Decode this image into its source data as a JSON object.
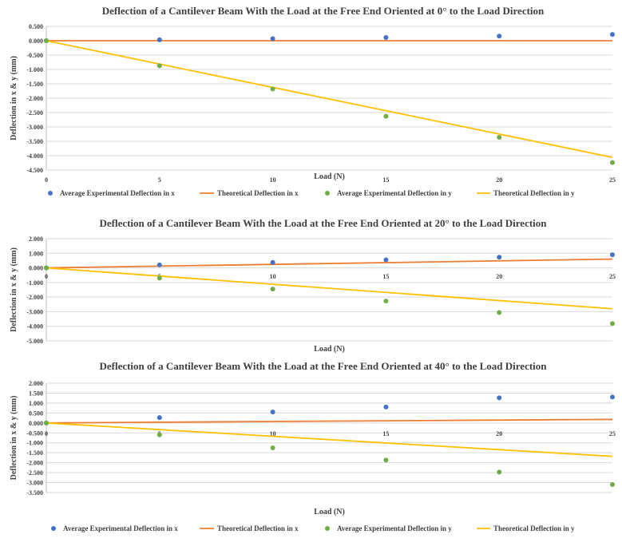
{
  "colors": {
    "exp_x": "#4472C4",
    "theo_x": "#ED7D31",
    "exp_y": "#70AD47",
    "theo_y": "#FFC000",
    "grid": "#D9D9D9",
    "axis": "#404040"
  },
  "chart_data": [
    {
      "type": "scatter",
      "title": "Deflection of a Cantilever Beam With the Load at the Free End Oriented at 0° to the Load Direction",
      "xlabel": "Load (N)",
      "ylabel": "Deflection in x & y (mm)",
      "xlim": [
        0,
        25
      ],
      "ylim": [
        -4.5,
        0.5
      ],
      "x_ticks": [
        0,
        5,
        10,
        15,
        20,
        25
      ],
      "y_ticks": [
        0.5,
        0,
        -0.5,
        -1.0,
        -1.5,
        -2.0,
        -2.5,
        -3.0,
        -3.5,
        -4.0,
        -4.5
      ],
      "y_tick_labels": [
        "0.500",
        "0.000",
        "-0.500",
        "-1.000",
        "-1.500",
        "-2.000",
        "-2.500",
        "-3.000",
        "-3.500",
        "-4.000",
        "-4.500"
      ],
      "grid": true,
      "legend": "bottom",
      "series": [
        {
          "name": "Average Experimental Deflection in x",
          "kind": "points",
          "color": "#4472C4",
          "x": [
            0,
            5,
            10,
            15,
            20,
            25
          ],
          "y": [
            0.0,
            0.03,
            0.07,
            0.11,
            0.16,
            0.22
          ]
        },
        {
          "name": "Theoretical Deflection in x",
          "kind": "line",
          "color": "#ED7D31",
          "x": [
            0,
            25
          ],
          "y": [
            0.0,
            0.0
          ]
        },
        {
          "name": "Average Experimental Deflection in y",
          "kind": "points",
          "color": "#70AD47",
          "x": [
            0,
            5,
            10,
            15,
            20,
            25
          ],
          "y": [
            0.0,
            -0.87,
            -1.68,
            -2.63,
            -3.36,
            -4.24
          ]
        },
        {
          "name": "Theoretical Deflection in y",
          "kind": "line",
          "color": "#FFC000",
          "x": [
            0,
            25
          ],
          "y": [
            0.0,
            -4.06
          ]
        }
      ]
    },
    {
      "type": "scatter",
      "title": "Deflection of a Cantilever Beam With the Load at the Free End Oriented at 20° to the Load Direction",
      "xlabel": "Load (N)",
      "ylabel": "Deflection in x & y (mm)",
      "xlim": [
        0,
        25
      ],
      "ylim": [
        -5.0,
        2.0
      ],
      "x_ticks": [
        0,
        5,
        10,
        15,
        20,
        25
      ],
      "y_ticks": [
        2.0,
        1.0,
        0,
        -1.0,
        -2.0,
        -3.0,
        -4.0,
        -5.0
      ],
      "y_tick_labels": [
        "2.000",
        "1.000",
        "0.000",
        "-1.000",
        "-2.000",
        "-3.000",
        "-4.000",
        "-5.000"
      ],
      "grid": true,
      "legend": "none",
      "series": [
        {
          "name": "Average Experimental Deflection in x",
          "kind": "points",
          "color": "#4472C4",
          "x": [
            0,
            5,
            10,
            15,
            20,
            25
          ],
          "y": [
            0.0,
            0.2,
            0.37,
            0.55,
            0.73,
            0.9
          ]
        },
        {
          "name": "Theoretical Deflection in x",
          "kind": "line",
          "color": "#ED7D31",
          "x": [
            0,
            25
          ],
          "y": [
            0.0,
            0.6
          ]
        },
        {
          "name": "Average Experimental Deflection in y",
          "kind": "points",
          "color": "#70AD47",
          "x": [
            0,
            5,
            10,
            15,
            20,
            25
          ],
          "y": [
            0.0,
            -0.7,
            -1.45,
            -2.27,
            -3.06,
            -3.82
          ]
        },
        {
          "name": "Theoretical Deflection in y",
          "kind": "line",
          "color": "#FFC000",
          "x": [
            0,
            25
          ],
          "y": [
            0.0,
            -2.8
          ]
        }
      ]
    },
    {
      "type": "scatter",
      "title": "Deflection of a Cantilever Beam With the Load at the Free End Oriented at 40° to the Load Direction",
      "xlabel": "Load (N)",
      "ylabel": "Deflection in x & y (mm)",
      "xlim": [
        0,
        25
      ],
      "ylim": [
        -3.5,
        2.0
      ],
      "x_ticks": [
        0,
        5,
        10,
        15,
        20,
        25
      ],
      "y_ticks": [
        2.0,
        1.5,
        1.0,
        0.5,
        0,
        -0.5,
        -1.0,
        -1.5,
        -2.0,
        -2.5,
        -3.0,
        -3.5
      ],
      "y_tick_labels": [
        "2.000",
        "1.500",
        "1.000",
        "0.500",
        "0.000",
        "-0.500",
        "-1.000",
        "-1.500",
        "-2.000",
        "-2.500",
        "-3.000",
        "-3.500"
      ],
      "grid": true,
      "legend": "bottom",
      "series": [
        {
          "name": "Average Experimental Deflection in x",
          "kind": "points",
          "color": "#4472C4",
          "x": [
            0,
            5,
            10,
            15,
            20,
            25
          ],
          "y": [
            0.0,
            0.27,
            0.55,
            0.8,
            1.26,
            1.3
          ]
        },
        {
          "name": "Theoretical Deflection in x",
          "kind": "line",
          "color": "#ED7D31",
          "x": [
            0,
            25
          ],
          "y": [
            0.0,
            0.18
          ]
        },
        {
          "name": "Average Experimental Deflection in y",
          "kind": "points",
          "color": "#70AD47",
          "x": [
            0,
            5,
            10,
            15,
            20,
            25
          ],
          "y": [
            0.0,
            -0.6,
            -1.25,
            -1.87,
            -2.47,
            -3.1
          ]
        },
        {
          "name": "Theoretical Deflection in y",
          "kind": "line",
          "color": "#FFC000",
          "x": [
            0,
            25
          ],
          "y": [
            0.0,
            -1.68
          ]
        }
      ]
    }
  ]
}
